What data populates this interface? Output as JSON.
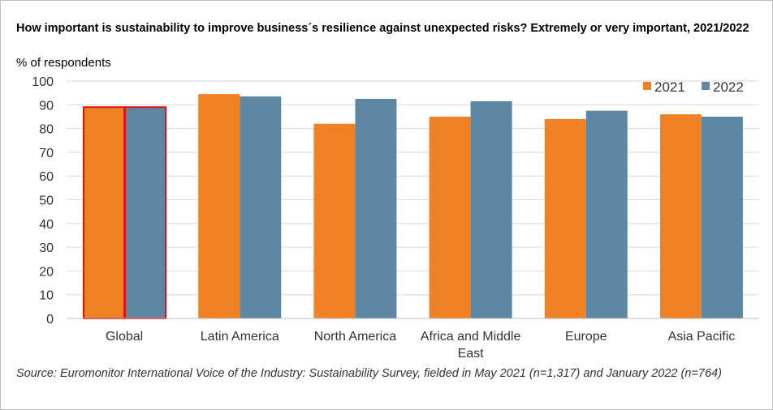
{
  "chart_data": {
    "type": "bar",
    "title": "How important is sustainability to improve business´s resilience against unexpected risks? Extremely or very important, 2021/2022",
    "ylabel": "% of respondents",
    "xlabel": "",
    "ylim": [
      0,
      100
    ],
    "yticks": [
      0,
      10,
      20,
      30,
      40,
      50,
      60,
      70,
      80,
      90,
      100
    ],
    "grid": true,
    "legend_position": "top-right",
    "categories": [
      "Global",
      "Latin America",
      "North America",
      "Africa and Middle East",
      "Europe",
      "Asia Pacific"
    ],
    "category_lines": [
      [
        "Global"
      ],
      [
        "Latin America"
      ],
      [
        "North America"
      ],
      [
        "Africa and Middle",
        "East"
      ],
      [
        "Europe"
      ],
      [
        "Asia Pacific"
      ]
    ],
    "series": [
      {
        "name": "2021",
        "color": "#f08124",
        "values": [
          89,
          94.5,
          82,
          85,
          84,
          86
        ]
      },
      {
        "name": "2022",
        "color": "#5e87a3",
        "values": [
          89,
          93.5,
          92.5,
          91.5,
          87.5,
          85
        ]
      }
    ],
    "highlight": {
      "category": "Global",
      "outline_color": "#e01010"
    },
    "source": "Source: Euromonitor International Voice of the Industry: Sustainability Survey, fielded in May 2021 (n=1,317) and January 2022 (n=764)"
  }
}
